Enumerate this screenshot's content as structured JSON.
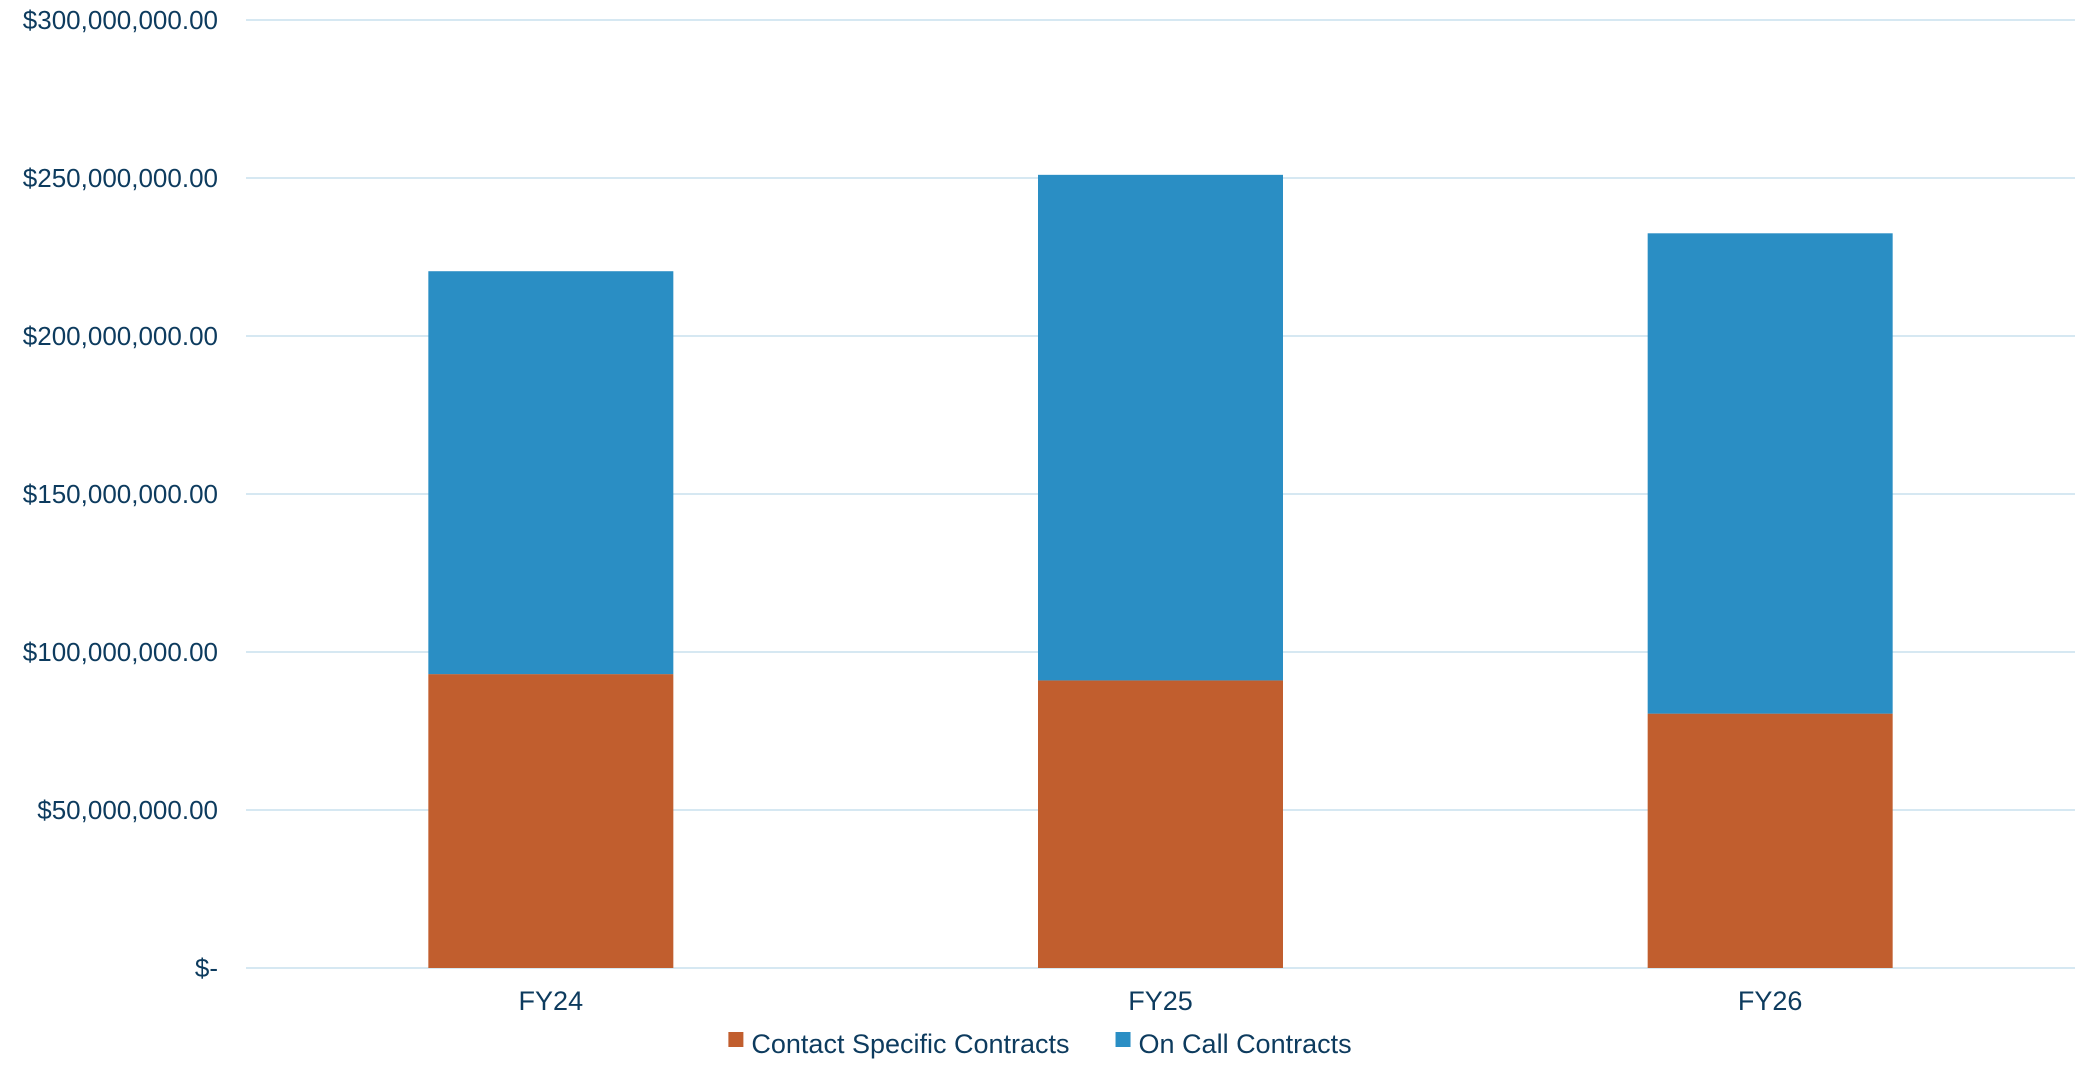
{
  "chart_data": {
    "type": "bar",
    "stacked": true,
    "categories": [
      "FY24",
      "FY25",
      "FY26"
    ],
    "series": [
      {
        "name": "Contact Specific Contracts",
        "color": "#C15E2E",
        "values": [
          93000000,
          91000000,
          80500000
        ]
      },
      {
        "name": "On Call Contracts",
        "color": "#2A8EC4",
        "values": [
          127500000,
          160000000,
          152000000
        ]
      }
    ],
    "title": "",
    "xlabel": "",
    "ylabel": "",
    "ylim": [
      0,
      300000000
    ],
    "yticks": [
      0,
      50000000,
      100000000,
      150000000,
      200000000,
      250000000,
      300000000
    ],
    "ytick_labels": [
      "$-",
      "$50,000,000.00",
      "$100,000,000.00",
      "$150,000,000.00",
      "$200,000,000.00",
      "$250,000,000.00",
      "$300,000,000.00"
    ],
    "grid": true,
    "legend_position": "bottom"
  },
  "colors": {
    "gridline": "#C9E1EE",
    "text": "#0d3b5e"
  }
}
